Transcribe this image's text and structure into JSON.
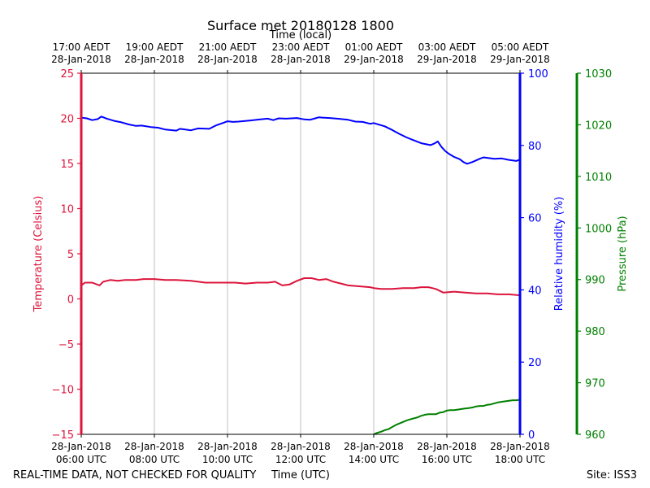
{
  "chart_data": {
    "type": "line",
    "title": "Surface met 20180128 1800",
    "xlabel_top": "Time (local)",
    "xlabel_bottom": "Time (UTC)",
    "ylabel_left": "Temperature (Celsius)",
    "ylabel_right1": "Relative humidity (%)",
    "ylabel_right2": "Pressure (hPa)",
    "footer_left": "REAL-TIME DATA, NOT CHECKED FOR QUALITY",
    "footer_right": "Site: ISS3",
    "x_range_hours": [
      6,
      18
    ],
    "x_ticks_hours": [
      6,
      8,
      10,
      12,
      14,
      16,
      18
    ],
    "x_ticks_bottom": [
      [
        "28-Jan-2018",
        "06:00 UTC"
      ],
      [
        "28-Jan-2018",
        "08:00 UTC"
      ],
      [
        "28-Jan-2018",
        "10:00 UTC"
      ],
      [
        "28-Jan-2018",
        "12:00 UTC"
      ],
      [
        "28-Jan-2018",
        "14:00 UTC"
      ],
      [
        "28-Jan-2018",
        "16:00 UTC"
      ],
      [
        "28-Jan-2018",
        "18:00 UTC"
      ]
    ],
    "x_ticks_top": [
      [
        "17:00 AEDT",
        "28-Jan-2018"
      ],
      [
        "19:00 AEDT",
        "28-Jan-2018"
      ],
      [
        "21:00 AEDT",
        "28-Jan-2018"
      ],
      [
        "23:00 AEDT",
        "28-Jan-2018"
      ],
      [
        "01:00 AEDT",
        "29-Jan-2018"
      ],
      [
        "03:00 AEDT",
        "29-Jan-2018"
      ],
      [
        "05:00 AEDT",
        "29-Jan-2018"
      ]
    ],
    "temp_axis": {
      "range": [
        -15,
        25
      ],
      "ticks": [
        25,
        20,
        15,
        10,
        5,
        0,
        -5,
        -10,
        -15
      ],
      "tick_labels": [
        "25",
        "20",
        "15",
        "10",
        "5",
        "0",
        "−5",
        "−10",
        "−15"
      ]
    },
    "rh_axis": {
      "range": [
        0,
        100
      ],
      "ticks": [
        100,
        80,
        60,
        40,
        20,
        0
      ],
      "tick_labels": [
        "100",
        "80",
        "60",
        "40",
        "20",
        "0"
      ]
    },
    "pressure_axis": {
      "range": [
        960,
        1030
      ],
      "ticks": [
        1030,
        1020,
        1010,
        1000,
        990,
        980,
        970,
        960
      ],
      "tick_labels": [
        "1030",
        "1020",
        "1010",
        "1000",
        "990",
        "980",
        "970",
        "960"
      ]
    },
    "series": [
      {
        "name": "Temperature",
        "axis": "temp",
        "x": [
          6.0,
          6.1,
          6.3,
          6.5,
          6.6,
          6.8,
          7.0,
          7.2,
          7.5,
          7.7,
          8.0,
          8.3,
          8.6,
          9.0,
          9.4,
          9.8,
          10.2,
          10.5,
          10.8,
          11.1,
          11.3,
          11.5,
          11.7,
          11.9,
          12.1,
          12.3,
          12.5,
          12.7,
          12.9,
          13.1,
          13.3,
          13.6,
          13.9,
          14.0,
          14.2,
          14.5,
          14.8,
          15.1,
          15.3,
          15.5,
          15.7,
          15.9,
          16.2,
          16.5,
          16.8,
          17.1,
          17.4,
          17.7,
          18.0
        ],
        "values": [
          1.5,
          1.8,
          1.8,
          1.5,
          1.9,
          2.1,
          2.0,
          2.1,
          2.1,
          2.2,
          2.2,
          2.1,
          2.1,
          2.0,
          1.8,
          1.8,
          1.8,
          1.7,
          1.8,
          1.8,
          1.9,
          1.5,
          1.6,
          2.0,
          2.3,
          2.3,
          2.1,
          2.2,
          1.9,
          1.7,
          1.5,
          1.4,
          1.3,
          1.2,
          1.1,
          1.1,
          1.2,
          1.2,
          1.3,
          1.3,
          1.1,
          0.7,
          0.8,
          0.7,
          0.6,
          0.6,
          0.5,
          0.5,
          0.4
        ]
      },
      {
        "name": "Relative humidity",
        "axis": "rh",
        "x": [
          6.0,
          6.15,
          6.3,
          6.45,
          6.55,
          6.7,
          6.9,
          7.1,
          7.3,
          7.5,
          7.65,
          7.9,
          8.1,
          8.3,
          8.6,
          8.7,
          8.85,
          9.0,
          9.2,
          9.5,
          9.7,
          9.9,
          10.0,
          10.15,
          10.3,
          10.6,
          10.9,
          11.1,
          11.25,
          11.4,
          11.6,
          11.9,
          12.1,
          12.25,
          12.4,
          12.5,
          12.6,
          12.8,
          13.0,
          13.3,
          13.5,
          13.7,
          13.9,
          14.0,
          14.3,
          14.5,
          14.7,
          14.9,
          15.1,
          15.3,
          15.55,
          15.65,
          15.75,
          15.85,
          15.95,
          16.05,
          16.2,
          16.35,
          16.45,
          16.55,
          16.7,
          16.9,
          17.0,
          17.3,
          17.5,
          17.7,
          17.9,
          18.0
        ],
        "values": [
          87.7,
          87.5,
          87.0,
          87.3,
          88.0,
          87.4,
          86.8,
          86.4,
          85.8,
          85.4,
          85.5,
          85.1,
          84.9,
          84.4,
          84.1,
          84.6,
          84.4,
          84.2,
          84.7,
          84.6,
          85.6,
          86.3,
          86.7,
          86.5,
          86.6,
          86.9,
          87.2,
          87.4,
          87.0,
          87.5,
          87.4,
          87.6,
          87.2,
          87.1,
          87.5,
          87.8,
          87.7,
          87.6,
          87.4,
          87.1,
          86.6,
          86.5,
          86.0,
          86.2,
          85.3,
          84.3,
          83.2,
          82.2,
          81.4,
          80.6,
          80.1,
          80.5,
          81.1,
          79.6,
          78.5,
          77.7,
          76.8,
          76.2,
          75.4,
          74.9,
          75.4,
          76.3,
          76.7,
          76.3,
          76.4,
          76.0,
          75.7,
          76.1
        ]
      },
      {
        "name": "Pressure",
        "axis": "pressure",
        "x": [
          14.0,
          14.1,
          14.2,
          14.3,
          14.4,
          14.5,
          14.6,
          14.7,
          14.8,
          14.9,
          15.0,
          15.1,
          15.2,
          15.3,
          15.4,
          15.5,
          15.6,
          15.7,
          15.8,
          15.9,
          16.0,
          16.1,
          16.2,
          16.3,
          16.4,
          16.5,
          16.6,
          16.7,
          16.8,
          16.9,
          17.0,
          17.1,
          17.2,
          17.3,
          17.4,
          17.5,
          17.6,
          17.7,
          17.8,
          17.9,
          18.0
        ],
        "values": [
          960.0,
          960.3,
          960.5,
          960.8,
          961.0,
          961.4,
          961.8,
          962.1,
          962.4,
          962.7,
          962.9,
          963.1,
          963.3,
          963.6,
          963.8,
          963.9,
          963.9,
          963.9,
          964.2,
          964.3,
          964.6,
          964.7,
          964.7,
          964.8,
          964.9,
          965.0,
          965.1,
          965.2,
          965.4,
          965.5,
          965.5,
          965.7,
          965.8,
          966.0,
          966.2,
          966.3,
          966.4,
          966.5,
          966.6,
          966.6,
          966.7
        ]
      }
    ],
    "colors": {
      "temp": "#dc143c",
      "rh": "#0000ff",
      "pressure": "#008000",
      "grid": "#b0b0b0",
      "text": "#000000"
    }
  }
}
